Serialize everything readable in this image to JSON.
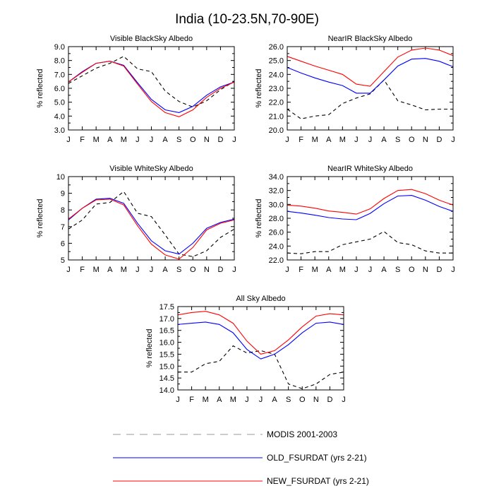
{
  "figure_title": "India (10-23.5N,70-90E)",
  "colors": {
    "modis": "#000000",
    "old": "#0000ff",
    "new": "#ff0000",
    "axis": "#000000"
  },
  "legend": [
    {
      "label": "MODIS 2001-2003",
      "style": "dashed",
      "color": "#000000"
    },
    {
      "label": "OLD_FSURDAT (yrs 2-21)",
      "style": "solid",
      "color": "#0000ff"
    },
    {
      "label": "NEW_FSURDAT (yrs 2-21)",
      "style": "solid",
      "color": "#ff0000"
    }
  ],
  "chart_data": [
    {
      "type": "line",
      "title": "Visible BlackSky Albedo",
      "ylabel": "% reflected",
      "x": [
        "J",
        "F",
        "M",
        "A",
        "M",
        "J",
        "J",
        "A",
        "S",
        "O",
        "N",
        "D",
        "J"
      ],
      "ylim": [
        3.0,
        9.0
      ],
      "yticks": [
        "3.0",
        "4.0",
        "5.0",
        "6.0",
        "7.0",
        "8.0",
        "9.0"
      ],
      "series": [
        {
          "name": "MODIS 2001-2003",
          "values": [
            6.35,
            6.9,
            7.45,
            7.8,
            8.3,
            7.4,
            7.2,
            5.8,
            5.05,
            4.65,
            5.1,
            5.9,
            6.5
          ]
        },
        {
          "name": "OLD_FSURDAT (yrs 2-21)",
          "values": [
            6.45,
            7.2,
            7.8,
            7.95,
            7.65,
            6.4,
            5.2,
            4.45,
            4.25,
            4.7,
            5.5,
            6.1,
            6.45
          ]
        },
        {
          "name": "NEW_FSURDAT (yrs 2-21)",
          "values": [
            6.45,
            7.15,
            7.8,
            7.95,
            7.6,
            6.3,
            5.05,
            4.25,
            3.95,
            4.45,
            5.35,
            6.0,
            6.45
          ]
        }
      ]
    },
    {
      "type": "line",
      "title": "NearIR BlackSky Albedo",
      "ylabel": "% reflected",
      "x": [
        "J",
        "F",
        "M",
        "A",
        "M",
        "J",
        "J",
        "A",
        "S",
        "O",
        "N",
        "D",
        "J"
      ],
      "ylim": [
        20.0,
        26.0
      ],
      "yticks": [
        "20.0",
        "21.0",
        "22.0",
        "23.0",
        "24.0",
        "25.0",
        "26.0"
      ],
      "series": [
        {
          "name": "MODIS 2001-2003",
          "values": [
            21.5,
            20.8,
            21.0,
            21.1,
            21.9,
            22.3,
            22.6,
            23.6,
            22.1,
            21.8,
            21.45,
            21.5,
            21.5
          ]
        },
        {
          "name": "OLD_FSURDAT (yrs 2-21)",
          "values": [
            24.5,
            24.1,
            23.75,
            23.45,
            23.2,
            22.65,
            22.65,
            23.6,
            24.6,
            25.1,
            25.15,
            24.95,
            24.55
          ]
        },
        {
          "name": "NEW_FSURDAT (yrs 2-21)",
          "values": [
            25.3,
            24.95,
            24.6,
            24.3,
            24.0,
            23.3,
            23.15,
            24.2,
            25.25,
            25.75,
            25.9,
            25.75,
            25.35
          ]
        }
      ]
    },
    {
      "type": "line",
      "title": "Visible WhiteSky Albedo",
      "ylabel": "% reflected",
      "x": [
        "J",
        "F",
        "M",
        "A",
        "M",
        "J",
        "J",
        "A",
        "S",
        "O",
        "N",
        "D",
        "J"
      ],
      "ylim": [
        5,
        10
      ],
      "yticks": [
        "5",
        "6",
        "7",
        "8",
        "9",
        "10"
      ],
      "series": [
        {
          "name": "MODIS 2001-2003",
          "values": [
            6.85,
            7.4,
            8.35,
            8.45,
            9.1,
            7.8,
            7.6,
            6.5,
            5.35,
            5.2,
            5.55,
            6.35,
            6.85
          ]
        },
        {
          "name": "OLD_FSURDAT (yrs 2-21)",
          "values": [
            7.4,
            8.1,
            8.65,
            8.7,
            8.4,
            7.2,
            6.15,
            5.55,
            5.35,
            6.0,
            6.9,
            7.25,
            7.45
          ]
        },
        {
          "name": "NEW_FSURDAT (yrs 2-21)",
          "values": [
            7.45,
            8.1,
            8.6,
            8.65,
            8.3,
            7.05,
            5.95,
            5.3,
            5.05,
            5.75,
            6.8,
            7.2,
            7.4
          ]
        }
      ]
    },
    {
      "type": "line",
      "title": "NearIR WhiteSky Albedo",
      "ylabel": "% reflected",
      "x": [
        "J",
        "F",
        "M",
        "A",
        "M",
        "J",
        "J",
        "A",
        "S",
        "O",
        "N",
        "D",
        "J"
      ],
      "ylim": [
        22.0,
        34.0
      ],
      "yticks": [
        "22.0",
        "24.0",
        "26.0",
        "28.0",
        "30.0",
        "32.0",
        "34.0"
      ],
      "series": [
        {
          "name": "MODIS 2001-2003",
          "values": [
            23.0,
            22.9,
            23.2,
            23.2,
            24.2,
            24.6,
            25.0,
            26.1,
            24.5,
            24.2,
            23.3,
            23.0,
            23.0
          ]
        },
        {
          "name": "OLD_FSURDAT (yrs 2-21)",
          "values": [
            29.0,
            28.75,
            28.45,
            28.1,
            27.9,
            27.8,
            28.7,
            30.1,
            31.2,
            31.3,
            30.6,
            29.7,
            29.0
          ]
        },
        {
          "name": "NEW_FSURDAT (yrs 2-21)",
          "values": [
            29.9,
            29.75,
            29.45,
            29.05,
            28.85,
            28.6,
            29.35,
            30.85,
            32.0,
            32.15,
            31.55,
            30.6,
            29.9
          ]
        }
      ]
    },
    {
      "type": "line",
      "title": "All Sky Albedo",
      "ylabel": "% reflected",
      "x": [
        "J",
        "F",
        "M",
        "A",
        "M",
        "J",
        "J",
        "A",
        "S",
        "O",
        "N",
        "D",
        "J"
      ],
      "ylim": [
        14.0,
        17.5
      ],
      "yticks": [
        "14.0",
        "14.5",
        "15.0",
        "15.5",
        "16.0",
        "16.5",
        "17.0",
        "17.5"
      ],
      "series": [
        {
          "name": "MODIS 2001-2003",
          "values": [
            14.75,
            14.75,
            15.1,
            15.2,
            15.85,
            15.55,
            15.65,
            15.5,
            14.25,
            14.05,
            14.25,
            14.65,
            14.75
          ]
        },
        {
          "name": "OLD_FSURDAT (yrs 2-21)",
          "values": [
            16.75,
            16.8,
            16.85,
            16.75,
            16.4,
            15.7,
            15.3,
            15.5,
            15.9,
            16.4,
            16.8,
            16.85,
            16.75
          ]
        },
        {
          "name": "NEW_FSURDAT (yrs 2-21)",
          "values": [
            17.15,
            17.25,
            17.3,
            17.15,
            16.8,
            16.05,
            15.5,
            15.65,
            16.1,
            16.65,
            17.1,
            17.2,
            17.15
          ]
        }
      ]
    }
  ]
}
